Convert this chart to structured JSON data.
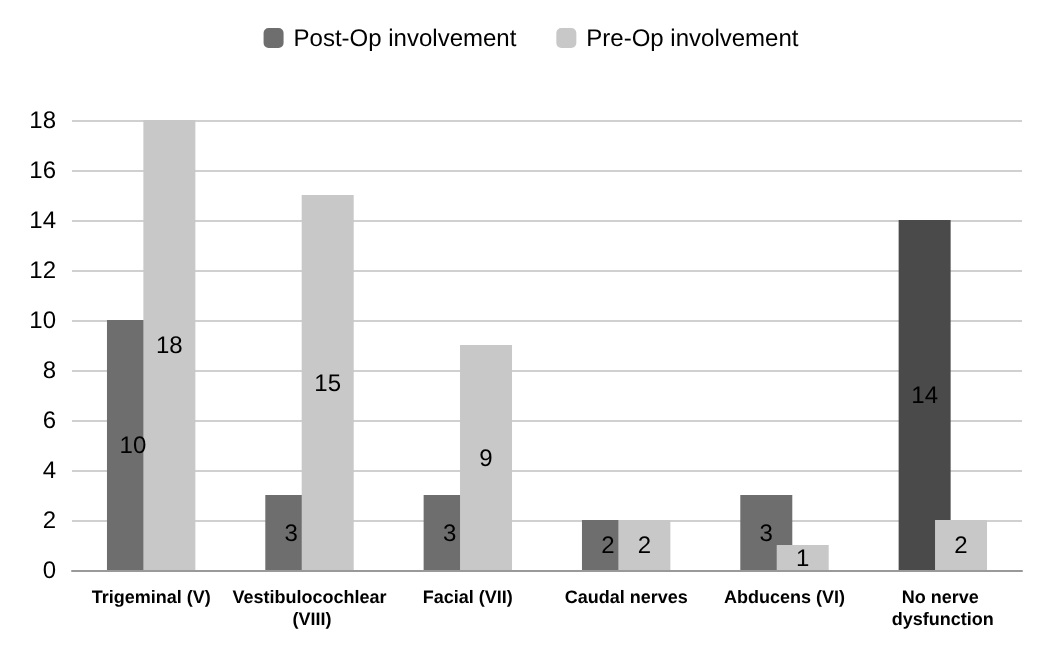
{
  "chart_data": {
    "type": "bar",
    "categories": [
      "Trigeminal (V)",
      "Vestibulocochlear (VIII)",
      "Facial (VII)",
      "Caudal nerves",
      "Abducens (VI)",
      "No nerve dysfunction"
    ],
    "series": [
      {
        "name": "Post-Op involvement",
        "color": "#6e6e6e",
        "colors": [
          "#6e6e6e",
          "#6e6e6e",
          "#6e6e6e",
          "#6e6e6e",
          "#6e6e6e",
          "#4a4a4a"
        ],
        "values": [
          10,
          3,
          3,
          2,
          3,
          14
        ]
      },
      {
        "name": "Pre-Op involvement",
        "color": "#c8c8c8",
        "values": [
          18,
          15,
          9,
          2,
          1,
          2
        ]
      }
    ],
    "ylim": [
      0,
      18
    ],
    "yticks": [
      0,
      2,
      4,
      6,
      8,
      10,
      12,
      14,
      16,
      18
    ],
    "grid": "y",
    "legend": "top",
    "data_labels": true
  }
}
